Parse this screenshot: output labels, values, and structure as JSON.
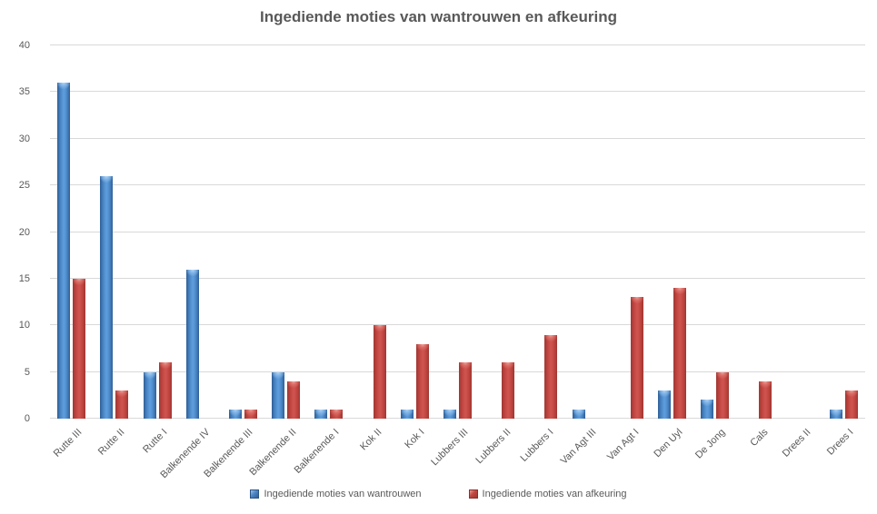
{
  "chart_data": {
    "type": "bar",
    "title": "Ingediende moties van wantrouwen en afkeuring",
    "categories": [
      "Rutte III",
      "Rutte II",
      "Rutte I",
      "Balkenende IV",
      "Balkenende III",
      "Balkenende II",
      "Balkenende I",
      "Kok II",
      "Kok I",
      "Lubbers III",
      "Lubbers II",
      "Lubbers I",
      "Van Agt III",
      "Van Agt I",
      "Den Uyl",
      "De Jong",
      "Cals",
      "Drees II",
      "Drees I"
    ],
    "series": [
      {
        "name": "Ingediende moties van wantrouwen",
        "color": "#4a86c4",
        "color_edge": "#2f5e97",
        "color_highlight": "#5d9cdc",
        "values": [
          36,
          26,
          5,
          16,
          1,
          5,
          1,
          0,
          1,
          1,
          0,
          0,
          1,
          0,
          3,
          2,
          0,
          0,
          1
        ]
      },
      {
        "name": "Ingediende moties van afkeuring",
        "color": "#c14540",
        "color_edge": "#9e3733",
        "color_highlight": "#ce524d",
        "values": [
          15,
          3,
          6,
          0,
          1,
          4,
          1,
          10,
          8,
          6,
          6,
          9,
          0,
          13,
          14,
          5,
          4,
          0,
          3
        ]
      }
    ],
    "xlabel": "",
    "ylabel": "",
    "ylim": [
      0,
      40
    ],
    "yticks": [
      0,
      5,
      10,
      15,
      20,
      25,
      30,
      35,
      40
    ],
    "grid": "horizontal",
    "legend_position": "bottom",
    "text_color": "#595959",
    "grid_color": "#d9d9d9"
  }
}
